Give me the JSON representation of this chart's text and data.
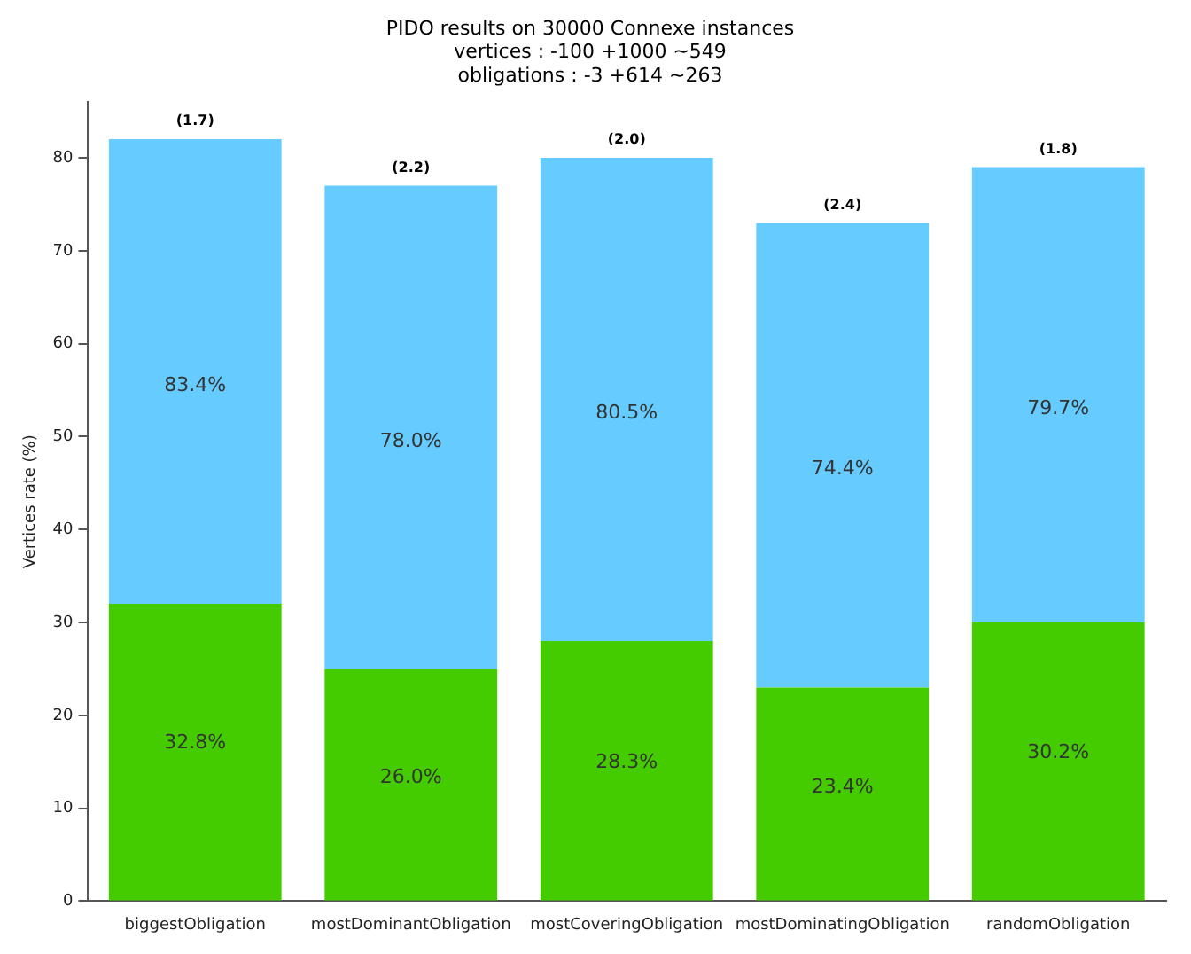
{
  "chart_data": {
    "type": "bar",
    "title": "PIDO results on 30000 Connexe instances",
    "subtitle": "vertices : -100 +1000 ~549\nobligations : -3 +614 ~263",
    "ylabel": "Vertices rate (%)",
    "categories": [
      "biggestObligation",
      "mostDominantObligation",
      "mostCoveringObligation",
      "mostDominatingObligation",
      "randomObligation"
    ],
    "stacked": true,
    "series": [
      {
        "color": "#44cc00",
        "values": [
          32,
          25,
          28,
          23,
          30
        ]
      },
      {
        "color": "#66ccff",
        "values": [
          50,
          52,
          52,
          50,
          49
        ]
      }
    ],
    "annotations": [
      "32.8%",
      "26.0%",
      "28.3%",
      "23.4%",
      "30.2%",
      "83.4%",
      "78.0%",
      "80.5%",
      "74.4%",
      "79.7%",
      {
        "text": "(1.7)",
        "x": "biggestObligation",
        "y": 82
      },
      {
        "text": "(2.2)",
        "x": "mostDominantObligation",
        "y": 77
      },
      {
        "text": "(2.0)",
        "x": "mostCoveringObligation",
        "y": 80
      },
      {
        "text": "(2.4)",
        "x": "mostDominatingObligation",
        "y": 73
      },
      {
        "text": "(1.8)",
        "x": "randomObligation",
        "y": 79
      }
    ],
    "ylim": [
      0,
      86
    ],
    "yticks": [
      0,
      10,
      20,
      30,
      40,
      50,
      60,
      70,
      80
    ],
    "grid": false,
    "legend": false
  }
}
